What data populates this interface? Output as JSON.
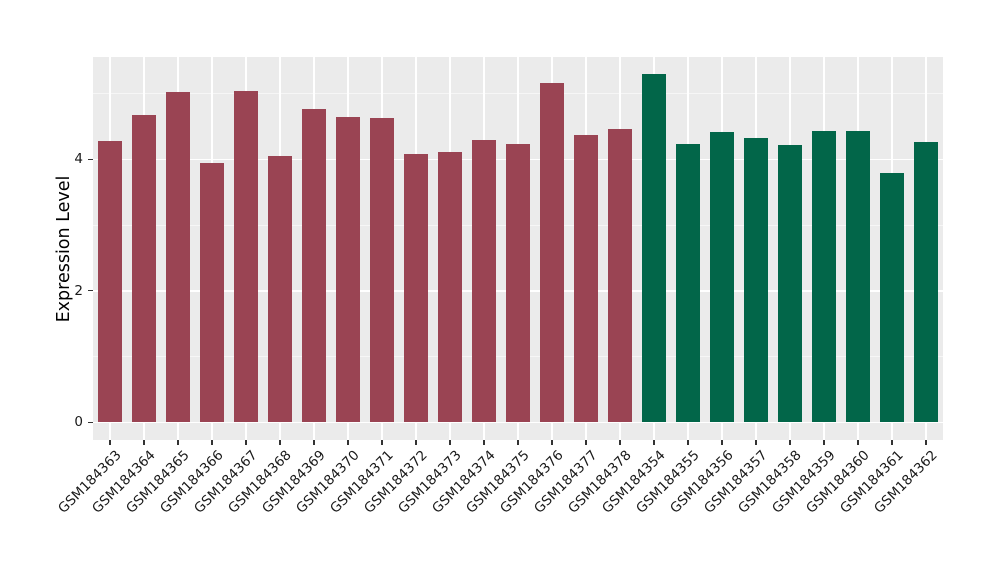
{
  "figure": {
    "background_color": "#FFFFFF",
    "panel_background_color": "#EBEBEB",
    "grid_major_color": "#FFFFFF",
    "grid_minor_color": "#F6F6F6",
    "axis_text_color": "#1A1A1A",
    "tick_mark_color": "#333333"
  },
  "chart_data": {
    "type": "bar",
    "title": "",
    "xlabel": "",
    "ylabel": "Expression Level",
    "legend_position": "none",
    "grid": "on",
    "ylim": [
      -0.27,
      5.56
    ],
    "yticks": [
      0,
      2,
      4
    ],
    "ytick_labels": [
      "0",
      "2",
      "4"
    ],
    "minor_yticks": [
      1,
      3,
      5
    ],
    "categories": [
      "GSM184363",
      "GSM184364",
      "GSM184365",
      "GSM184366",
      "GSM184367",
      "GSM184368",
      "GSM184369",
      "GSM184370",
      "GSM184371",
      "GSM184372",
      "GSM184373",
      "GSM184374",
      "GSM184375",
      "GSM184376",
      "GSM184377",
      "GSM184378",
      "GSM184354",
      "GSM184355",
      "GSM184356",
      "GSM184357",
      "GSM184358",
      "GSM184359",
      "GSM184360",
      "GSM184361",
      "GSM184362"
    ],
    "values": [
      4.28,
      4.67,
      5.02,
      3.94,
      5.04,
      4.05,
      4.77,
      4.65,
      4.63,
      4.09,
      4.12,
      4.29,
      4.24,
      5.17,
      4.37,
      4.47,
      5.3,
      4.24,
      4.42,
      4.33,
      4.22,
      4.44,
      4.43,
      3.79,
      4.26
    ],
    "groups": [
      "red",
      "red",
      "red",
      "red",
      "red",
      "red",
      "red",
      "red",
      "red",
      "red",
      "red",
      "red",
      "red",
      "red",
      "red",
      "red",
      "green",
      "green",
      "green",
      "green",
      "green",
      "green",
      "green",
      "green",
      "green"
    ],
    "group_colors": {
      "red": "#9A4453",
      "green": "#026649"
    }
  }
}
